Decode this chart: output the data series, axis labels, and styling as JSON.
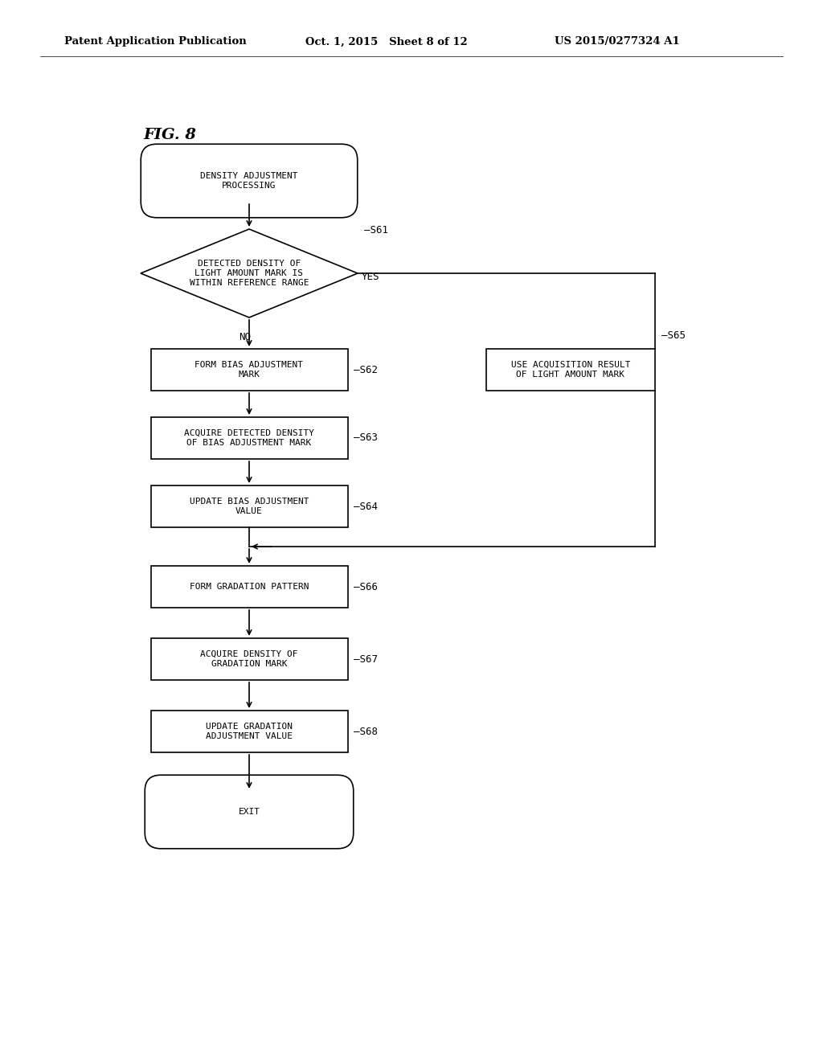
{
  "bg_color": "#ffffff",
  "header_left": "Patent Application Publication",
  "header_mid": "Oct. 1, 2015   Sheet 8 of 12",
  "header_right": "US 2015/0277324 A1",
  "fig_label": "FIG. 8",
  "text_fontsize": 8.0,
  "label_fontsize": 9.0,
  "header_fontsize": 9.5,
  "figlabel_fontsize": 14,
  "lw": 1.2
}
